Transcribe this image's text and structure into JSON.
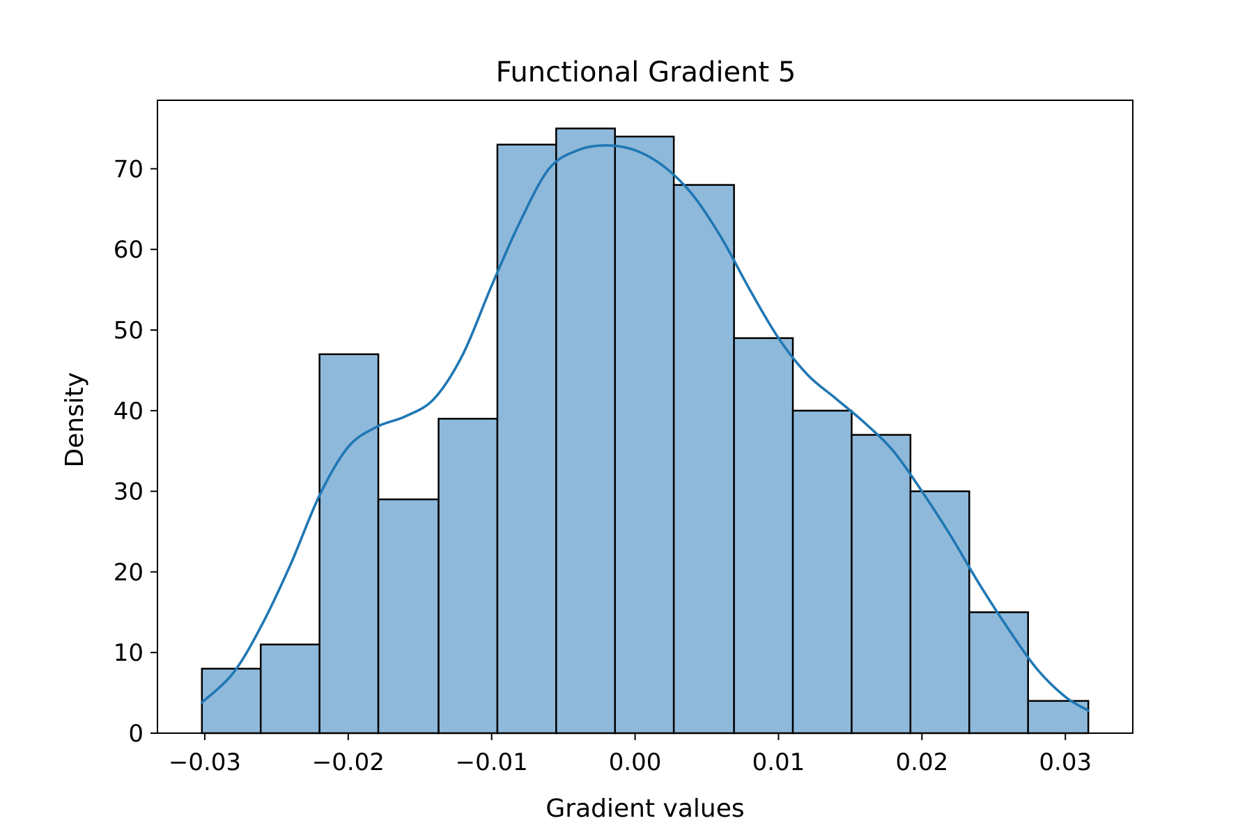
{
  "chart_data": {
    "type": "bar",
    "title": "Functional Gradient 5",
    "xlabel": "Gradient values",
    "ylabel": "Density",
    "xlim": [
      -0.0333,
      0.0347
    ],
    "ylim": [
      0,
      78.5
    ],
    "xticks": [
      -0.03,
      -0.02,
      -0.01,
      0.0,
      0.01,
      0.02,
      0.03
    ],
    "xtick_labels": [
      "−0.03",
      "−0.02",
      "−0.01",
      "0.00",
      "0.01",
      "0.02",
      "0.03"
    ],
    "yticks": [
      0,
      10,
      20,
      30,
      40,
      50,
      60,
      70
    ],
    "ytick_labels": [
      "0",
      "10",
      "20",
      "30",
      "40",
      "50",
      "60",
      "70"
    ],
    "grid": false,
    "bar_color": "#8fb9da",
    "bar_edge_color": "#000000",
    "bins": [
      {
        "x0": -0.0302,
        "x1": -0.0261,
        "value": 8
      },
      {
        "x0": -0.0261,
        "x1": -0.022,
        "value": 11
      },
      {
        "x0": -0.022,
        "x1": -0.0179,
        "value": 47
      },
      {
        "x0": -0.0179,
        "x1": -0.0137,
        "value": 29
      },
      {
        "x0": -0.0137,
        "x1": -0.0096,
        "value": 39
      },
      {
        "x0": -0.0096,
        "x1": -0.0055,
        "value": 73
      },
      {
        "x0": -0.0055,
        "x1": -0.0014,
        "value": 75
      },
      {
        "x0": -0.0014,
        "x1": 0.0027,
        "value": 74
      },
      {
        "x0": 0.0027,
        "x1": 0.0069,
        "value": 68
      },
      {
        "x0": 0.0069,
        "x1": 0.011,
        "value": 49
      },
      {
        "x0": 0.011,
        "x1": 0.0151,
        "value": 40
      },
      {
        "x0": 0.0151,
        "x1": 0.0192,
        "value": 37
      },
      {
        "x0": 0.0192,
        "x1": 0.0233,
        "value": 30
      },
      {
        "x0": 0.0233,
        "x1": 0.0274,
        "value": 15
      },
      {
        "x0": 0.0274,
        "x1": 0.0316,
        "value": 4
      }
    ],
    "kde": {
      "color": "#1f77b4",
      "points": [
        [
          -0.0302,
          3.8
        ],
        [
          -0.028,
          7.5
        ],
        [
          -0.026,
          13.5
        ],
        [
          -0.024,
          21.0
        ],
        [
          -0.022,
          29.5
        ],
        [
          -0.02,
          35.5
        ],
        [
          -0.018,
          38.0
        ],
        [
          -0.016,
          39.3
        ],
        [
          -0.014,
          41.5
        ],
        [
          -0.012,
          47.0
        ],
        [
          -0.01,
          55.5
        ],
        [
          -0.008,
          63.5
        ],
        [
          -0.006,
          70.0
        ],
        [
          -0.004,
          72.3
        ],
        [
          -0.002,
          72.9
        ],
        [
          0.0,
          72.3
        ],
        [
          0.002,
          70.3
        ],
        [
          0.004,
          66.8
        ],
        [
          0.006,
          61.5
        ],
        [
          0.008,
          55.0
        ],
        [
          0.01,
          49.0
        ],
        [
          0.012,
          44.5
        ],
        [
          0.014,
          41.5
        ],
        [
          0.016,
          38.5
        ],
        [
          0.018,
          35.0
        ],
        [
          0.02,
          30.0
        ],
        [
          0.022,
          24.5
        ],
        [
          0.024,
          18.5
        ],
        [
          0.026,
          13.0
        ],
        [
          0.028,
          8.0
        ],
        [
          0.03,
          4.5
        ],
        [
          0.0316,
          2.8
        ]
      ]
    }
  }
}
